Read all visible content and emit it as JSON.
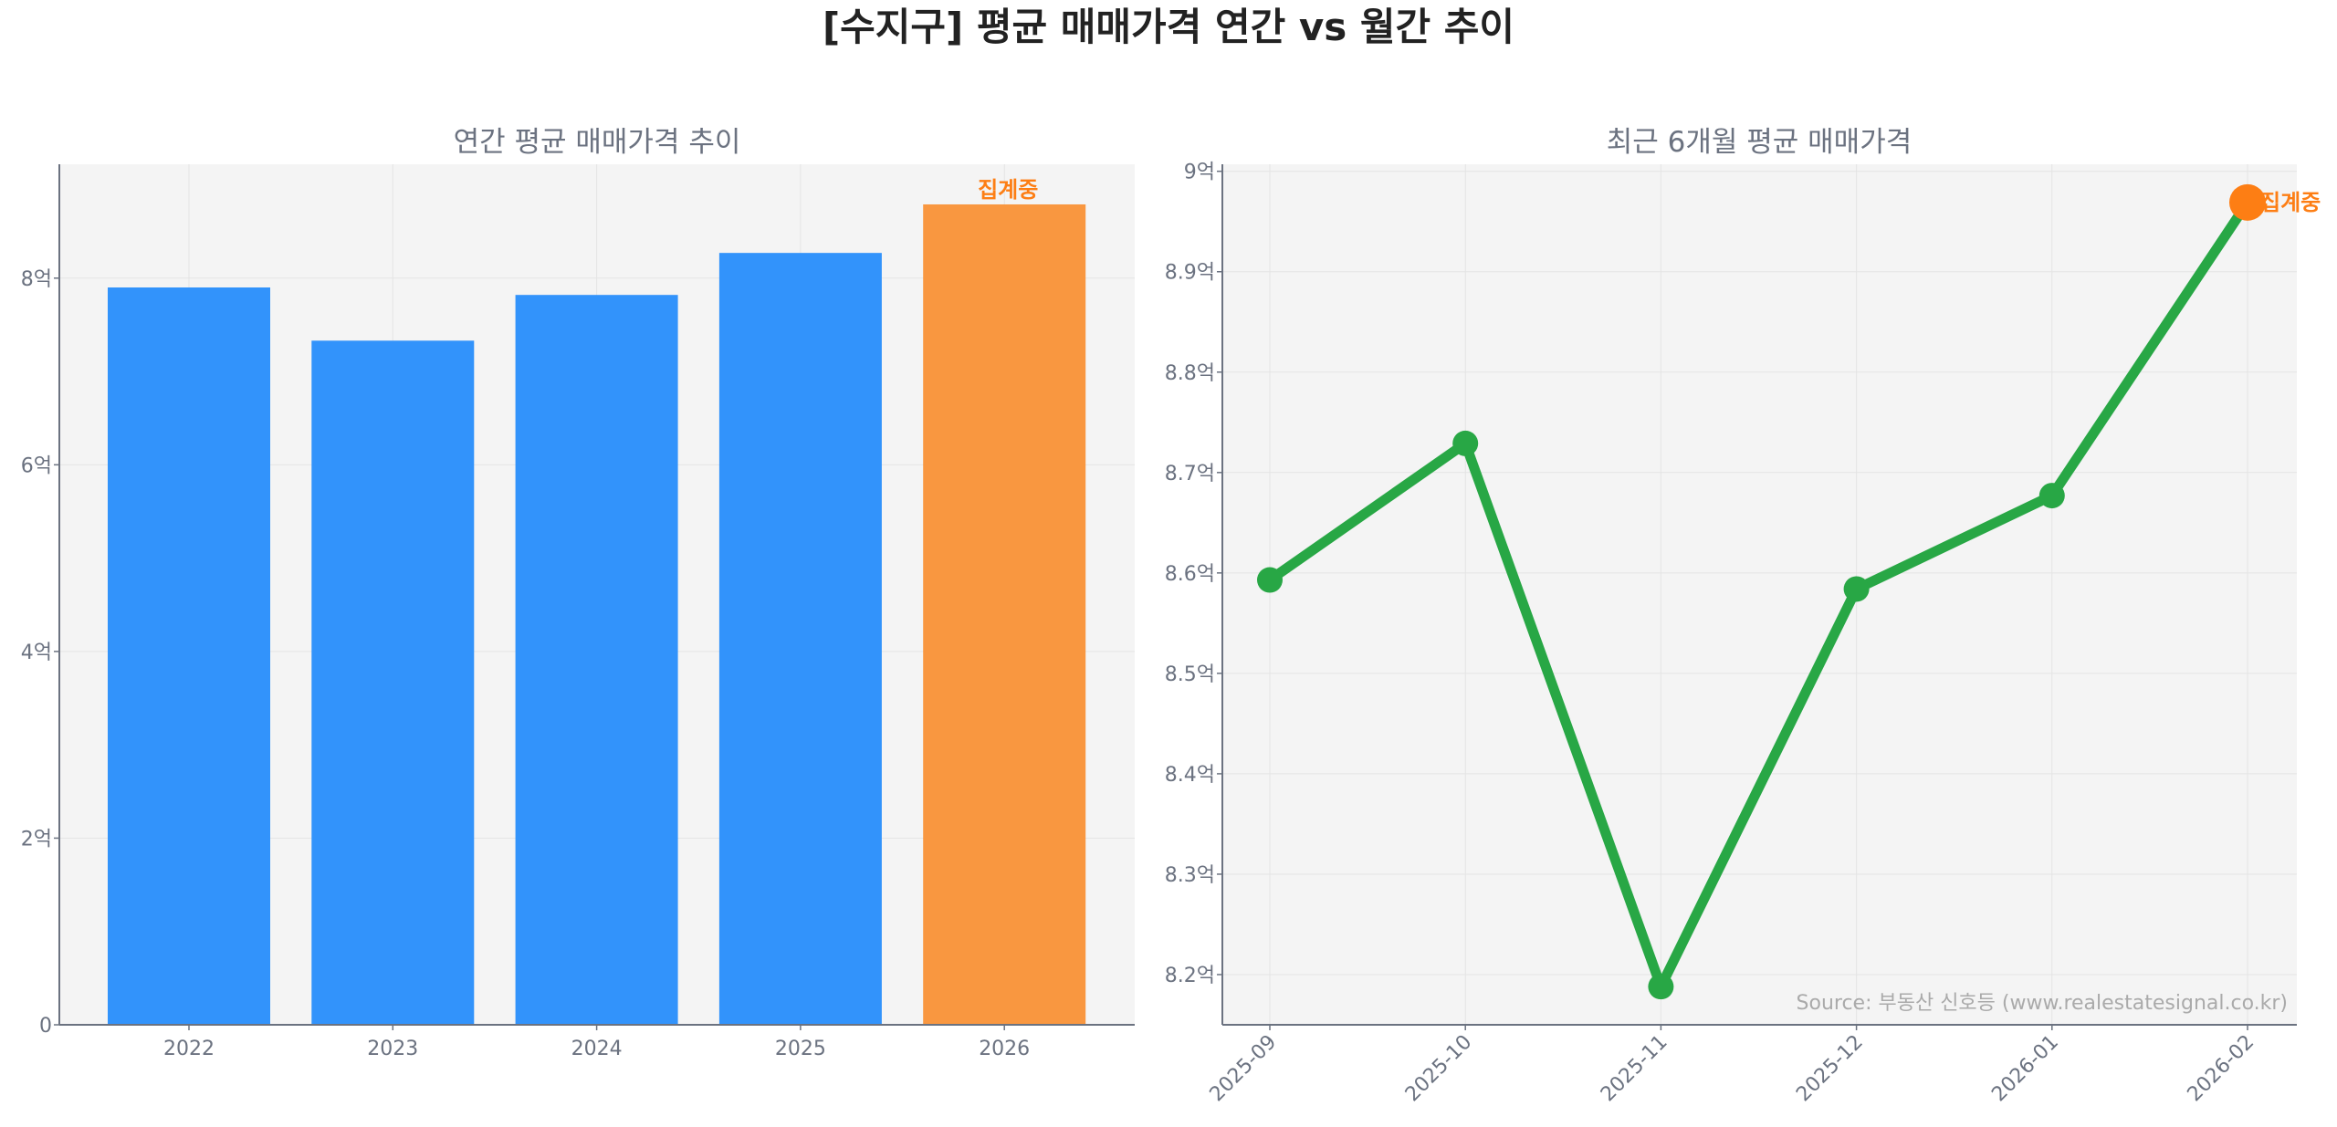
{
  "title": "[수지구] 평균 매매가격 연간 vs 월간 추이",
  "source": "Source: 부동산 신호등 (www.realestatesignal.co.kr)",
  "chart_data": [
    {
      "type": "bar",
      "title": "연간 평균 매매가격 추이",
      "categories": [
        "2022",
        "2023",
        "2024",
        "2025",
        "2026"
      ],
      "values": [
        7.9,
        7.33,
        7.82,
        8.27,
        8.79
      ],
      "unit": "억",
      "ylim": [
        0,
        9.22
      ],
      "yticks": [
        0,
        2,
        4,
        6,
        8
      ],
      "ytick_labels": [
        "0",
        "2억",
        "4억",
        "6억",
        "8억"
      ],
      "grid": true,
      "colors": [
        "#3293fb",
        "#3293fb",
        "#3293fb",
        "#3293fb",
        "#f99740"
      ],
      "annotations": [
        {
          "category": "2026",
          "text": "집계중",
          "color": "#fd7e14"
        }
      ]
    },
    {
      "type": "line",
      "title": "최근 6개월 평균 매매가격",
      "x": [
        "2025-09",
        "2025-10",
        "2025-11",
        "2025-12",
        "2026-01",
        "2026-02"
      ],
      "values": [
        8.593,
        8.729,
        8.188,
        8.584,
        8.677,
        8.969
      ],
      "unit": "억",
      "ylim": [
        8.15,
        9.007
      ],
      "yticks": [
        8.2,
        8.3,
        8.4,
        8.5,
        8.6,
        8.7,
        8.8,
        8.9,
        9.0
      ],
      "ytick_labels": [
        "8.2억",
        "8.3억",
        "8.4억",
        "8.5억",
        "8.6억",
        "8.7억",
        "8.8억",
        "8.9억",
        "9억"
      ],
      "grid": true,
      "line_color": "#28a745",
      "highlight_color": "#fd7e14",
      "annotations": [
        {
          "x": "2026-02",
          "text": "집계중",
          "color": "#fd7e14"
        }
      ]
    }
  ]
}
